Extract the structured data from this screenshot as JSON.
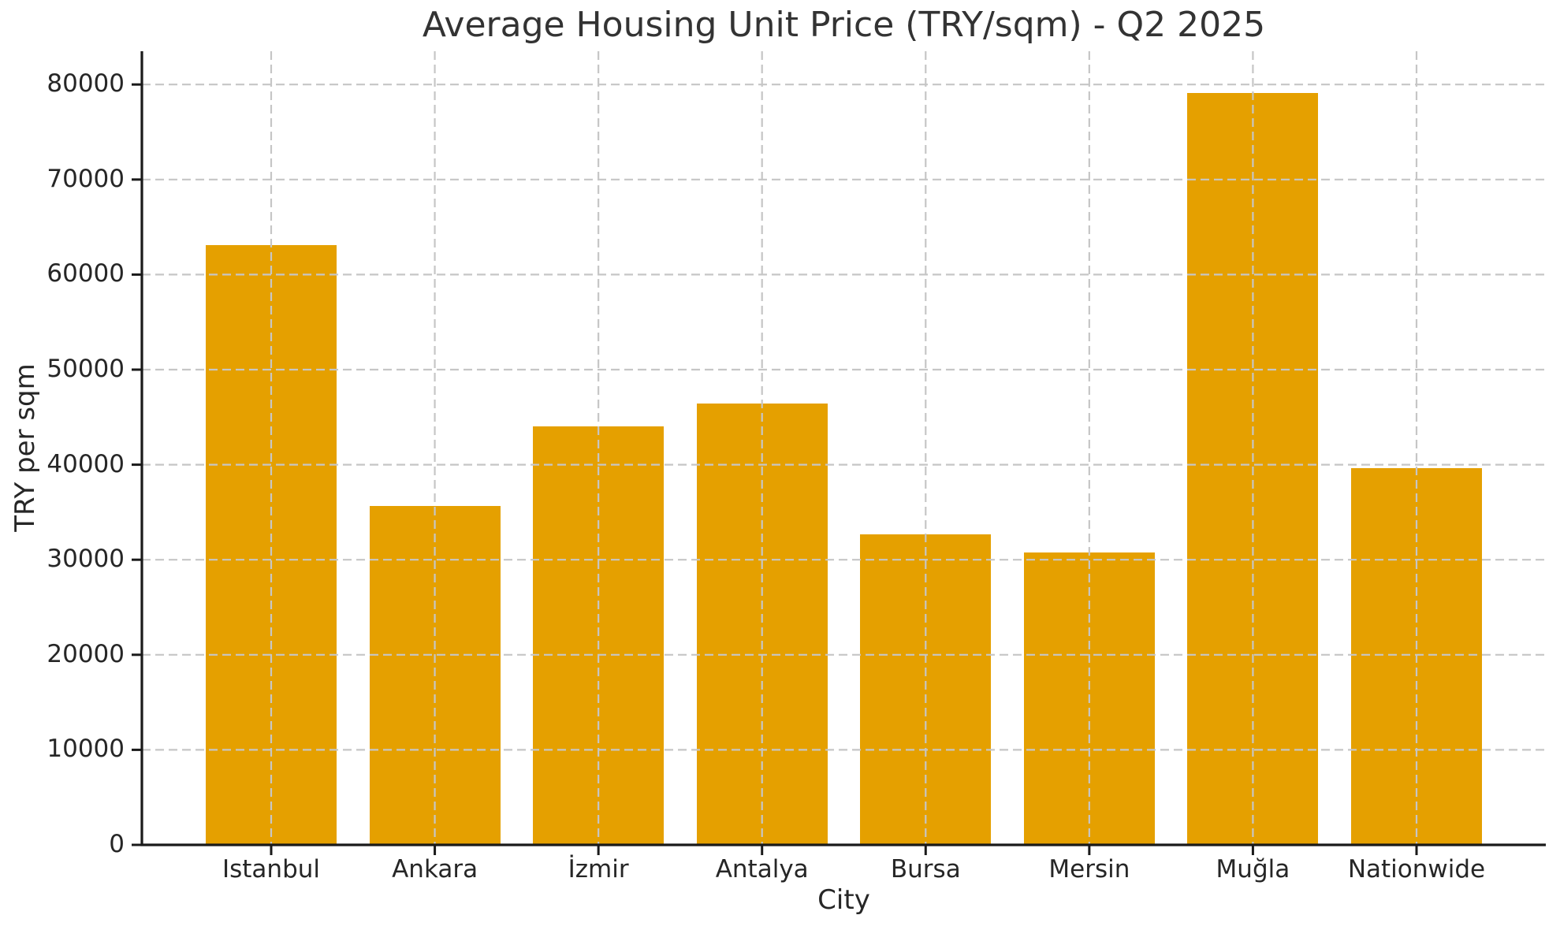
{
  "chart_data": {
    "type": "bar",
    "title": "Average Housing Unit Price (TRY/sqm) - Q2 2025",
    "xlabel": "City",
    "ylabel": "TRY per sqm",
    "categories": [
      "Istanbul",
      "Ankara",
      "İzmir",
      "Antalya",
      "Bursa",
      "Mersin",
      "Muğla",
      "Nationwide"
    ],
    "values": [
      63100,
      35700,
      44000,
      46400,
      32700,
      30800,
      79100,
      39650
    ],
    "yticks": [
      0,
      10000,
      20000,
      30000,
      40000,
      50000,
      60000,
      70000,
      80000
    ],
    "ylim": [
      0,
      83500
    ],
    "bar_color": "#E5A000",
    "grid_color": "#c6c6c6",
    "axis_color": "#1a1a1a",
    "text_color": "#262626",
    "title_color": "#333333",
    "grid_style": "dashed, horizontal and vertical, drawn above bars",
    "legend": "none",
    "background": "#ffffff"
  }
}
